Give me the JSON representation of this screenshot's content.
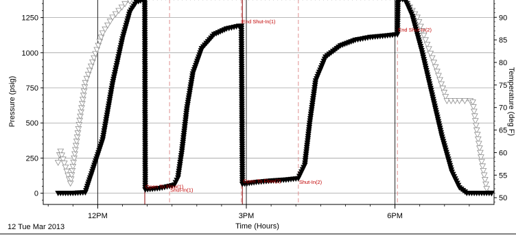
{
  "chart_data": {
    "type": "scatter",
    "title": "",
    "xlabel": "Time (Hours)",
    "ylabel": "Pressure (psig)",
    "y2label": "Temperature (deg F)",
    "date_label": "12 Tue Mar 2013",
    "x_ticks": [
      {
        "t": 12,
        "label": "12PM"
      },
      {
        "t": 15,
        "label": "3PM"
      },
      {
        "t": 18,
        "label": "6PM"
      }
    ],
    "xlim": [
      10.9,
      20.0
    ],
    "ylim": [
      -80,
      1380
    ],
    "y_ticks": [
      0,
      250,
      500,
      750,
      1000,
      1250
    ],
    "y2lim": [
      48.5,
      94
    ],
    "y2_ticks": [
      50,
      55,
      60,
      65,
      70,
      75,
      80,
      85,
      90
    ],
    "grid": true,
    "series": [
      {
        "axis": "pressure",
        "marker": "filled-triangle-down",
        "color": "#000000",
        "points": [
          [
            11.2,
            0
          ],
          [
            11.5,
            0
          ],
          [
            11.75,
            5
          ],
          [
            12.1,
            380
          ],
          [
            12.3,
            780
          ],
          [
            12.5,
            1100
          ],
          [
            12.65,
            1290
          ],
          [
            12.78,
            1360
          ],
          [
            12.95,
            1380
          ],
          [
            12.96,
            25
          ],
          [
            13.25,
            35
          ],
          [
            13.45,
            50
          ],
          [
            13.55,
            60
          ],
          [
            13.62,
            110
          ],
          [
            13.7,
            300
          ],
          [
            13.8,
            600
          ],
          [
            13.92,
            850
          ],
          [
            14.1,
            1030
          ],
          [
            14.35,
            1130
          ],
          [
            14.6,
            1170
          ],
          [
            14.85,
            1190
          ],
          [
            14.9,
            1190
          ],
          [
            14.92,
            65
          ],
          [
            15.2,
            78
          ],
          [
            15.5,
            88
          ],
          [
            15.8,
            95
          ],
          [
            16.05,
            105
          ],
          [
            16.18,
            200
          ],
          [
            16.28,
            500
          ],
          [
            16.4,
            800
          ],
          [
            16.6,
            970
          ],
          [
            16.9,
            1050
          ],
          [
            17.2,
            1090
          ],
          [
            17.5,
            1110
          ],
          [
            17.8,
            1120
          ],
          [
            18.05,
            1130
          ],
          [
            18.06,
            1380
          ],
          [
            18.2,
            1380
          ],
          [
            18.35,
            1260
          ],
          [
            18.55,
            1000
          ],
          [
            18.75,
            700
          ],
          [
            18.95,
            400
          ],
          [
            19.15,
            150
          ],
          [
            19.3,
            40
          ],
          [
            19.45,
            0
          ],
          [
            19.7,
            0
          ],
          [
            19.95,
            0
          ]
        ]
      },
      {
        "axis": "temperature",
        "marker": "open-triangle-down",
        "color": "#8c8c8c",
        "points": [
          [
            11.2,
            57.8
          ],
          [
            11.23,
            59.5
          ],
          [
            11.25,
            60.3
          ],
          [
            11.45,
            53.2
          ],
          [
            11.75,
            75.5
          ],
          [
            12.1,
            86.5
          ],
          [
            12.3,
            90
          ],
          [
            12.55,
            93
          ],
          [
            12.75,
            94.2
          ],
          [
            12.95,
            94.5
          ],
          [
            18.15,
            94.5
          ],
          [
            18.45,
            90
          ],
          [
            18.65,
            84
          ],
          [
            18.85,
            78
          ],
          [
            19.05,
            71.5
          ],
          [
            19.3,
            71.5
          ],
          [
            19.52,
            71.5
          ],
          [
            19.57,
            71.2
          ],
          [
            19.65,
            65
          ],
          [
            19.75,
            58
          ],
          [
            19.85,
            52
          ],
          [
            19.95,
            51
          ]
        ]
      }
    ],
    "events": [
      {
        "t": 12.95,
        "label": "Open To Flow(1)",
        "color": "#8b0000",
        "style": "solid"
      },
      {
        "t": 13.45,
        "label": "Shut-In(1)",
        "color": "#e09090",
        "style": "dashed"
      },
      {
        "t": 14.9,
        "label": "End Shut-In(1)",
        "color": "#e09090",
        "style": "dashed"
      },
      {
        "t": 14.92,
        "label": "Open To Flow(2)",
        "color": "#8b0000",
        "style": "solid"
      },
      {
        "t": 16.05,
        "label": "Shut-In(2)",
        "color": "#e09090",
        "style": "dashed"
      },
      {
        "t": 18.05,
        "label": "End Shut-In(2)",
        "color": "#e09090",
        "style": "dashed"
      }
    ]
  }
}
